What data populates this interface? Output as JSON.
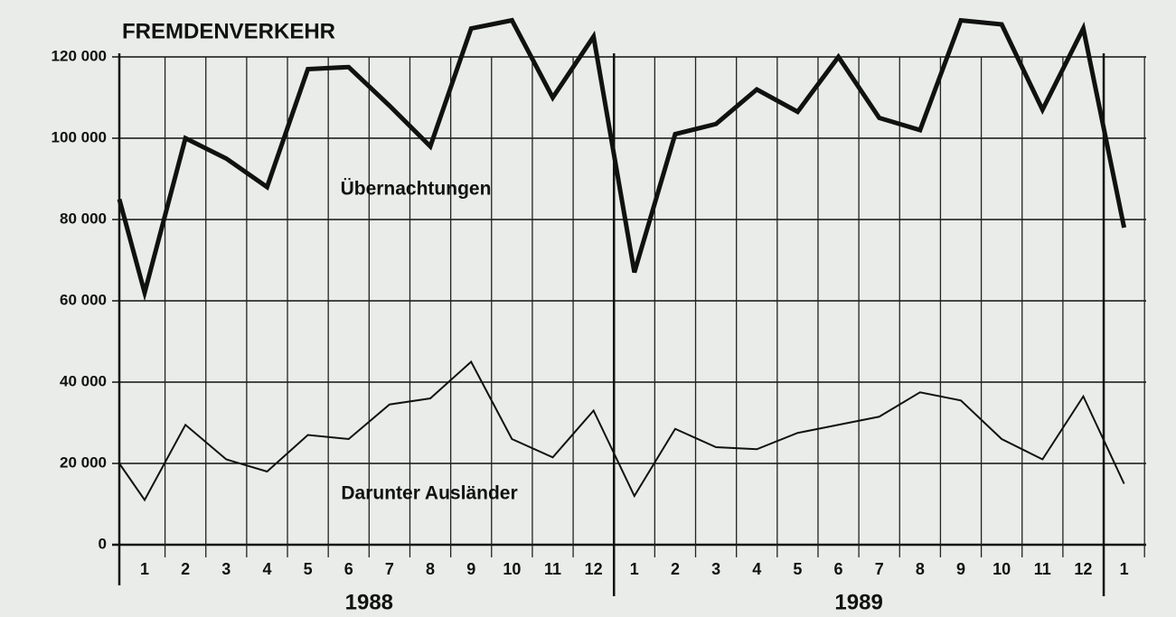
{
  "chart_data": {
    "type": "line",
    "title": "FREMDENVERKEHR",
    "categories": [
      null,
      "1",
      "2",
      "3",
      "4",
      "5",
      "6",
      "7",
      "8",
      "9",
      "10",
      "11",
      "12",
      "1",
      "2",
      "3",
      "4",
      "5",
      "6",
      "7",
      "8",
      "9",
      "10",
      "11",
      "12",
      "1"
    ],
    "year_labels": [
      "1988",
      "1989"
    ],
    "series": [
      {
        "name": "Übernachtungen",
        "color": "#111111",
        "values": [
          85000,
          62000,
          100000,
          95000,
          88000,
          117000,
          117500,
          108000,
          98000,
          127000,
          129000,
          110000,
          125000,
          67000,
          101000,
          103500,
          112000,
          106500,
          120000,
          105000,
          102000,
          129000,
          128000,
          107000,
          127000,
          78000
        ]
      },
      {
        "name": "Darunter Ausländer",
        "color": "#111111",
        "values": [
          20000,
          11000,
          29500,
          21000,
          18000,
          27000,
          26000,
          34500,
          36000,
          45000,
          26000,
          21500,
          33000,
          12000,
          28500,
          24000,
          23500,
          27500,
          29500,
          31500,
          37500,
          35500,
          26000,
          21000,
          36500,
          15000
        ]
      }
    ],
    "ylim": [
      0,
      130000
    ],
    "yticks": [
      0,
      {
        "value": 20000,
        "label": "20 000"
      },
      {
        "value": 40000,
        "label": "40 000"
      },
      {
        "value": 60000,
        "label": "60 000"
      },
      {
        "value": 80000,
        "label": "80 000"
      },
      {
        "value": 100000,
        "label": "100 000"
      },
      {
        "value": 120000,
        "label": "120 000"
      }
    ],
    "grid": true
  }
}
